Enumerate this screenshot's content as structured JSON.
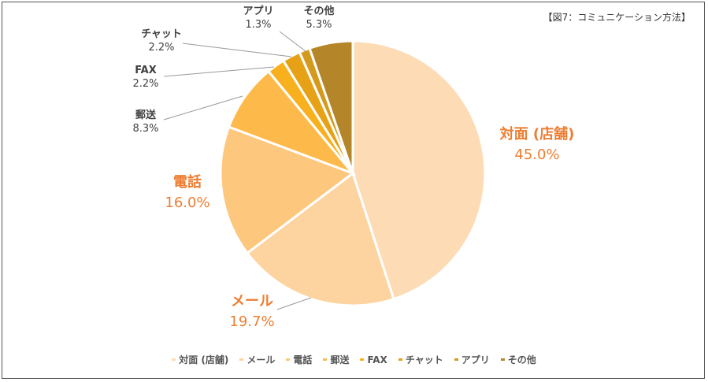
{
  "chart_data": {
    "type": "pie",
    "title": "【図7：コミュニケーション方法】",
    "start": "top",
    "direction": "clockwise",
    "legend_position": "bottom",
    "slices": [
      {
        "label": "対面 (店舗)",
        "value": 45.0,
        "display": "45.0%",
        "color": "#fddcb5"
      },
      {
        "label": "メール",
        "value": 19.7,
        "display": "19.7%",
        "color": "#fdd39f"
      },
      {
        "label": "電話",
        "value": 16.0,
        "display": "16.0%",
        "color": "#fdc77d"
      },
      {
        "label": "郵送",
        "value": 8.3,
        "display": "8.3%",
        "color": "#fdba4a"
      },
      {
        "label": "FAX",
        "value": 2.2,
        "display": "2.2%",
        "color": "#f8b01e"
      },
      {
        "label": "チャット",
        "value": 2.2,
        "display": "2.2%",
        "color": "#e6a116"
      },
      {
        "label": "アプリ",
        "value": 1.3,
        "display": "1.3%",
        "color": "#d49a1e"
      },
      {
        "label": "その他",
        "value": 5.3,
        "display": "5.3%",
        "color": "#b5852a"
      }
    ],
    "label_color_large": "#ed7d31",
    "label_color_small": "#404040"
  }
}
